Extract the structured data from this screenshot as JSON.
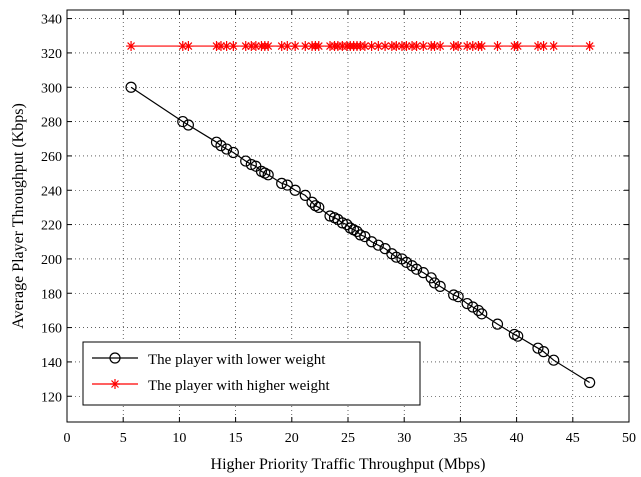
{
  "chart_data": {
    "type": "line",
    "title": "",
    "xlabel": "Higher Priority Traffic Throughput  (Mbps)",
    "ylabel": "Average Player Throughput (Kbps)",
    "xlim": [
      0,
      50
    ],
    "ylim": [
      105,
      345
    ],
    "xticks": [
      0,
      5,
      10,
      15,
      20,
      25,
      30,
      35,
      40,
      45,
      50
    ],
    "yticks": [
      120,
      140,
      160,
      180,
      200,
      220,
      240,
      260,
      280,
      300,
      320,
      340
    ],
    "grid": true,
    "legend_position": "bottom-left",
    "series": [
      {
        "name": "The player with lower weight",
        "color": "#000000",
        "marker": "circle",
        "x": [
          5.7,
          10.3,
          10.8,
          13.3,
          13.7,
          14.2,
          14.8,
          15.9,
          16.4,
          16.8,
          17.3,
          17.6,
          17.9,
          19.1,
          19.6,
          20.3,
          21.2,
          21.8,
          22.1,
          22.4,
          23.4,
          23.8,
          24.1,
          24.5,
          24.9,
          25.2,
          25.5,
          25.8,
          26.1,
          26.5,
          27.1,
          27.7,
          28.3,
          28.9,
          29.3,
          29.8,
          30.2,
          30.7,
          31.1,
          31.7,
          32.4,
          32.7,
          33.2,
          34.4,
          34.8,
          35.6,
          36.1,
          36.6,
          36.9,
          38.3,
          39.8,
          40.1,
          41.9,
          42.4,
          43.3,
          46.5
        ],
        "y": [
          300,
          280,
          278,
          268,
          266,
          264,
          262,
          257,
          255,
          254,
          251,
          250,
          249,
          244,
          243,
          240,
          237,
          233,
          231,
          230,
          225,
          224,
          223,
          221,
          220,
          218,
          217,
          216,
          214,
          213,
          210,
          208,
          206,
          203,
          201,
          200,
          198,
          196,
          194,
          192,
          189,
          186,
          184,
          179,
          178,
          174,
          172,
          170,
          168,
          162,
          156,
          155,
          148,
          146,
          141,
          128
        ]
      },
      {
        "name": "The player with higher weight",
        "color": "#ff0000",
        "marker": "star",
        "x": [
          5.7,
          10.3,
          10.8,
          13.3,
          13.7,
          14.2,
          14.8,
          15.9,
          16.4,
          16.8,
          17.3,
          17.6,
          17.9,
          19.1,
          19.6,
          20.3,
          21.2,
          21.8,
          22.1,
          22.4,
          23.4,
          23.8,
          24.1,
          24.5,
          24.9,
          25.2,
          25.5,
          25.8,
          26.1,
          26.5,
          27.1,
          27.7,
          28.3,
          28.9,
          29.3,
          29.8,
          30.2,
          30.7,
          31.1,
          31.7,
          32.4,
          32.7,
          33.2,
          34.4,
          34.8,
          35.6,
          36.1,
          36.6,
          36.9,
          38.3,
          39.8,
          40.1,
          41.9,
          42.4,
          43.3,
          46.5
        ],
        "y": [
          324,
          324,
          324,
          324,
          324,
          324,
          324,
          324,
          324,
          324,
          324,
          324,
          324,
          324,
          324,
          324,
          324,
          324,
          324,
          324,
          324,
          324,
          324,
          324,
          324,
          324,
          324,
          324,
          324,
          324,
          324,
          324,
          324,
          324,
          324,
          324,
          324,
          324,
          324,
          324,
          324,
          324,
          324,
          324,
          324,
          324,
          324,
          324,
          324,
          324,
          324,
          324,
          324,
          324,
          324,
          324
        ]
      }
    ]
  }
}
